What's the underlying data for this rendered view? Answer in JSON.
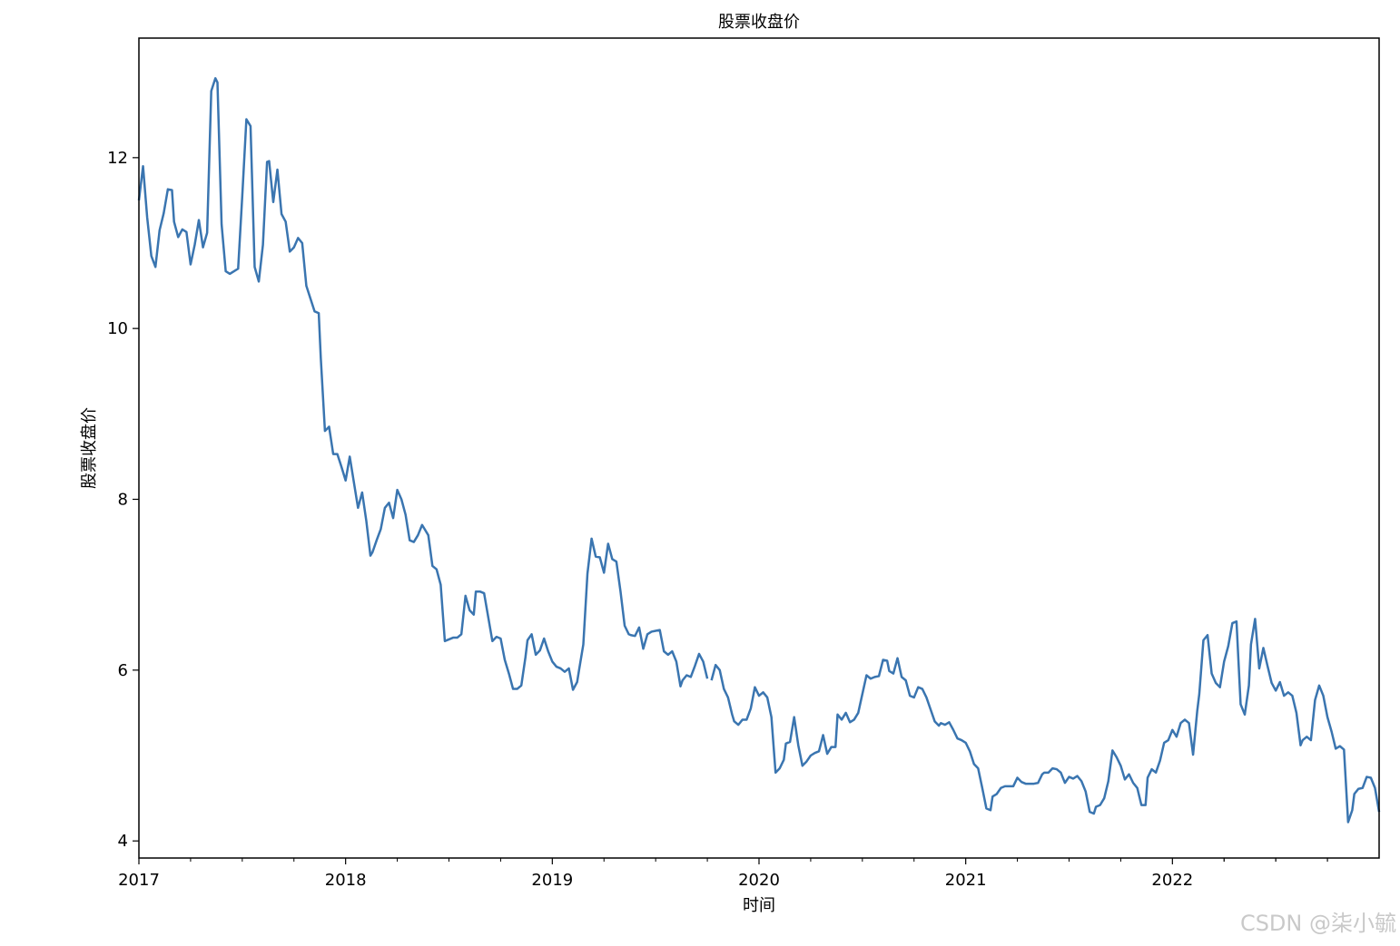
{
  "watermark": "CSDN @柒小毓",
  "chart_data": {
    "type": "line",
    "title": "股票收盘价",
    "xlabel": "时间",
    "ylabel": "股票收盘价",
    "x_ticks": [
      "2017",
      "2018",
      "2019",
      "2020",
      "2021",
      "2022"
    ],
    "x_tick_values": [
      2017.0,
      2018.0,
      2019.0,
      2020.0,
      2021.0,
      2022.0
    ],
    "y_ticks": [
      4,
      6,
      8,
      10,
      12
    ],
    "xlim": [
      2017.0,
      2023.0
    ],
    "ylim": [
      3.8,
      13.4
    ],
    "grid": false,
    "line_color": "#3a75b0",
    "series": [
      {
        "x": [
          2017.0,
          2017.02,
          2017.04,
          2017.06,
          2017.08,
          2017.1,
          2017.12,
          2017.14,
          2017.16,
          2017.17,
          2017.19,
          2017.21,
          2017.23,
          2017.25,
          2017.27,
          2017.29,
          2017.31,
          2017.33,
          2017.35,
          2017.37,
          2017.38,
          2017.4,
          2017.42,
          2017.44,
          2017.46,
          2017.48,
          2017.5,
          2017.52,
          2017.54,
          2017.56,
          2017.58,
          2017.6,
          2017.62,
          2017.63,
          2017.65,
          2017.67,
          2017.69,
          2017.71,
          2017.73,
          2017.75,
          2017.77,
          2017.79,
          2017.81,
          2017.83,
          2017.85,
          2017.87,
          2017.88,
          2017.9,
          2017.92,
          2017.94,
          2017.96,
          2017.98,
          2018.0,
          2018.02,
          2018.04,
          2018.06,
          2018.08,
          2018.1,
          2018.12,
          2018.13,
          2018.15,
          2018.17,
          2018.19,
          2018.21,
          2018.23,
          2018.25,
          2018.27,
          2018.29,
          2018.31,
          2018.33,
          2018.35,
          2018.37,
          2018.38,
          2018.4,
          2018.42,
          2018.44,
          2018.46,
          2018.48,
          2018.5,
          2018.52,
          2018.54,
          2018.56,
          2018.58,
          2018.6,
          2018.62,
          2018.63,
          2018.65,
          2018.67,
          2018.69,
          2018.71,
          2018.73,
          2018.75,
          2018.77,
          2018.79,
          2018.81,
          2018.83,
          2018.85,
          2018.87,
          2018.88,
          2018.9,
          2018.92,
          2018.94,
          2018.96,
          2018.98,
          2019.0,
          2019.02,
          2019.04,
          2019.06,
          2019.08,
          2019.1,
          2019.12,
          2019.13,
          2019.15,
          2019.17,
          2019.19,
          2019.21,
          2019.23,
          2019.25,
          2019.27,
          2019.29,
          2019.31,
          2019.33,
          2019.35,
          2019.37,
          2019.38,
          2019.4,
          2019.42,
          2019.44,
          2019.46,
          2019.48,
          2019.5,
          2019.52,
          2019.54,
          2019.56,
          2019.58,
          2019.6,
          2019.62,
          2019.63,
          2019.65,
          2019.67,
          2019.69,
          2019.71,
          2019.73,
          2019.75
        ],
        "y": [
          11.5,
          11.9,
          11.3,
          10.85,
          10.72,
          11.15,
          11.35,
          11.63,
          11.62,
          11.25,
          11.07,
          11.16,
          11.13,
          10.75,
          10.98,
          11.27,
          10.95,
          11.12,
          12.78,
          12.93,
          12.88,
          11.22,
          10.67,
          10.64,
          10.67,
          10.7,
          11.55,
          12.45,
          12.37,
          10.72,
          10.55,
          10.98,
          11.95,
          11.96,
          11.48,
          11.86,
          11.34,
          11.25,
          10.9,
          10.95,
          11.06,
          11.0,
          10.5,
          10.35,
          10.2,
          10.18,
          9.65,
          8.8,
          8.85,
          8.53,
          8.53,
          8.38,
          8.22,
          8.5,
          8.2,
          7.9,
          8.08,
          7.75,
          7.34,
          7.38,
          7.52,
          7.65,
          7.9,
          7.96,
          7.78,
          8.11,
          8.0,
          7.82,
          7.52,
          7.5,
          7.58,
          7.7,
          7.66,
          7.58,
          7.22,
          7.18,
          7.0,
          6.34,
          6.36,
          6.38,
          6.38,
          6.42,
          6.87,
          6.7,
          6.65,
          6.92,
          6.92,
          6.9,
          6.62,
          6.34,
          6.39,
          6.37,
          6.12,
          5.96,
          5.78,
          5.78,
          5.82,
          6.15,
          6.35,
          6.42,
          6.18,
          6.23,
          6.37,
          6.22,
          6.1,
          6.04,
          6.02,
          5.98,
          6.02,
          5.77,
          5.86,
          6.01,
          6.3,
          7.13,
          7.54,
          7.33,
          7.32,
          7.14,
          7.48,
          7.3,
          7.27,
          6.92,
          6.52,
          6.42,
          6.41,
          6.4,
          6.5,
          6.25,
          6.42,
          6.45,
          6.46,
          6.47,
          6.22,
          6.18,
          6.22,
          6.1,
          5.81,
          5.88,
          5.94,
          5.92,
          6.05,
          6.19,
          6.1,
          5.9
        ]
      },
      {
        "x": [
          2019.77,
          2019.79,
          2019.81,
          2019.83,
          2019.85,
          2019.87,
          2019.88,
          2019.9,
          2019.92,
          2019.94,
          2019.96,
          2019.98,
          2020.0,
          2020.02,
          2020.04,
          2020.06,
          2020.08,
          2020.1,
          2020.12,
          2020.13,
          2020.15,
          2020.17,
          2020.19,
          2020.21,
          2020.23,
          2020.25,
          2020.27,
          2020.29,
          2020.31,
          2020.33,
          2020.35,
          2020.37,
          2020.38,
          2020.4,
          2020.42,
          2020.44,
          2020.46,
          2020.48,
          2020.5,
          2020.52,
          2020.54,
          2020.56,
          2020.58,
          2020.6,
          2020.62,
          2020.63,
          2020.65,
          2020.67,
          2020.69,
          2020.71,
          2020.73,
          2020.75,
          2020.77,
          2020.79,
          2020.81,
          2020.83,
          2020.85,
          2020.87,
          2020.88,
          2020.9,
          2020.92,
          2020.94,
          2020.96,
          2020.98,
          2021.0,
          2021.02,
          2021.04,
          2021.06,
          2021.08,
          2021.1,
          2021.12,
          2021.13,
          2021.15,
          2021.17,
          2021.19,
          2021.21,
          2021.23,
          2021.25,
          2021.27,
          2021.29,
          2021.31,
          2021.33,
          2021.35,
          2021.37,
          2021.38,
          2021.4,
          2021.42,
          2021.44,
          2021.46,
          2021.48,
          2021.5,
          2021.52,
          2021.54,
          2021.56,
          2021.58,
          2021.6,
          2021.62,
          2021.63,
          2021.65,
          2021.67,
          2021.69,
          2021.71,
          2021.73,
          2021.75,
          2021.77,
          2021.79,
          2021.81,
          2021.83,
          2021.85,
          2021.87,
          2021.88,
          2021.9,
          2021.92,
          2021.94,
          2021.96,
          2021.98,
          2022.0,
          2022.02,
          2022.04,
          2022.06,
          2022.08,
          2022.1,
          2022.12,
          2022.13,
          2022.15,
          2022.17,
          2022.19,
          2022.21,
          2022.23,
          2022.25,
          2022.27,
          2022.29,
          2022.31,
          2022.33,
          2022.35,
          2022.37,
          2022.38,
          2022.4,
          2022.42,
          2022.44,
          2022.46,
          2022.48,
          2022.5,
          2022.52,
          2022.54,
          2022.56,
          2022.58,
          2022.6,
          2022.62,
          2022.63,
          2022.65,
          2022.67,
          2022.69,
          2022.71,
          2022.73,
          2022.75,
          2022.77,
          2022.79,
          2022.81,
          2022.83,
          2022.85,
          2022.87,
          2022.88,
          2022.9,
          2022.92,
          2022.94,
          2022.96,
          2022.98,
          2023.0
        ],
        "y": [
          5.88,
          6.06,
          6.0,
          5.78,
          5.68,
          5.48,
          5.4,
          5.36,
          5.42,
          5.42,
          5.55,
          5.8,
          5.7,
          5.74,
          5.68,
          5.45,
          4.8,
          4.85,
          4.95,
          5.14,
          5.16,
          5.45,
          5.12,
          4.88,
          4.93,
          5.0,
          5.03,
          5.05,
          5.24,
          5.02,
          5.1,
          5.1,
          5.48,
          5.42,
          5.5,
          5.39,
          5.42,
          5.5,
          5.72,
          5.94,
          5.9,
          5.92,
          5.93,
          6.12,
          6.11,
          5.99,
          5.96,
          6.14,
          5.92,
          5.88,
          5.7,
          5.68,
          5.8,
          5.78,
          5.68,
          5.54,
          5.4,
          5.35,
          5.38,
          5.36,
          5.39,
          5.3,
          5.2,
          5.18,
          5.15,
          5.05,
          4.9,
          4.85,
          4.62,
          4.38,
          4.36,
          4.52,
          4.55,
          4.62,
          4.64,
          4.64,
          4.64,
          4.74,
          4.69,
          4.67,
          4.67,
          4.67,
          4.68,
          4.78,
          4.8,
          4.8,
          4.85,
          4.84,
          4.8,
          4.68,
          4.75,
          4.73,
          4.76,
          4.7,
          4.58,
          4.34,
          4.32,
          4.4,
          4.42,
          4.5,
          4.7,
          5.06,
          4.98,
          4.88,
          4.72,
          4.78,
          4.68,
          4.62,
          4.42,
          4.42,
          4.74,
          4.84,
          4.8,
          4.94,
          5.15,
          5.18,
          5.3,
          5.22,
          5.38,
          5.42,
          5.38,
          5.01,
          5.52,
          5.72,
          6.35,
          6.41,
          5.96,
          5.85,
          5.8,
          6.1,
          6.28,
          6.55,
          6.57,
          5.6,
          5.48,
          5.82,
          6.3,
          6.6,
          6.02,
          6.26,
          6.05,
          5.85,
          5.76,
          5.86,
          5.7,
          5.74,
          5.7,
          5.5,
          5.12,
          5.18,
          5.22,
          5.18,
          5.65,
          5.82,
          5.7,
          5.45,
          5.28,
          5.08,
          5.11,
          5.07,
          4.22,
          4.36,
          4.55,
          4.61,
          4.62,
          4.75,
          4.74,
          4.62,
          4.34
        ]
      }
    ]
  }
}
